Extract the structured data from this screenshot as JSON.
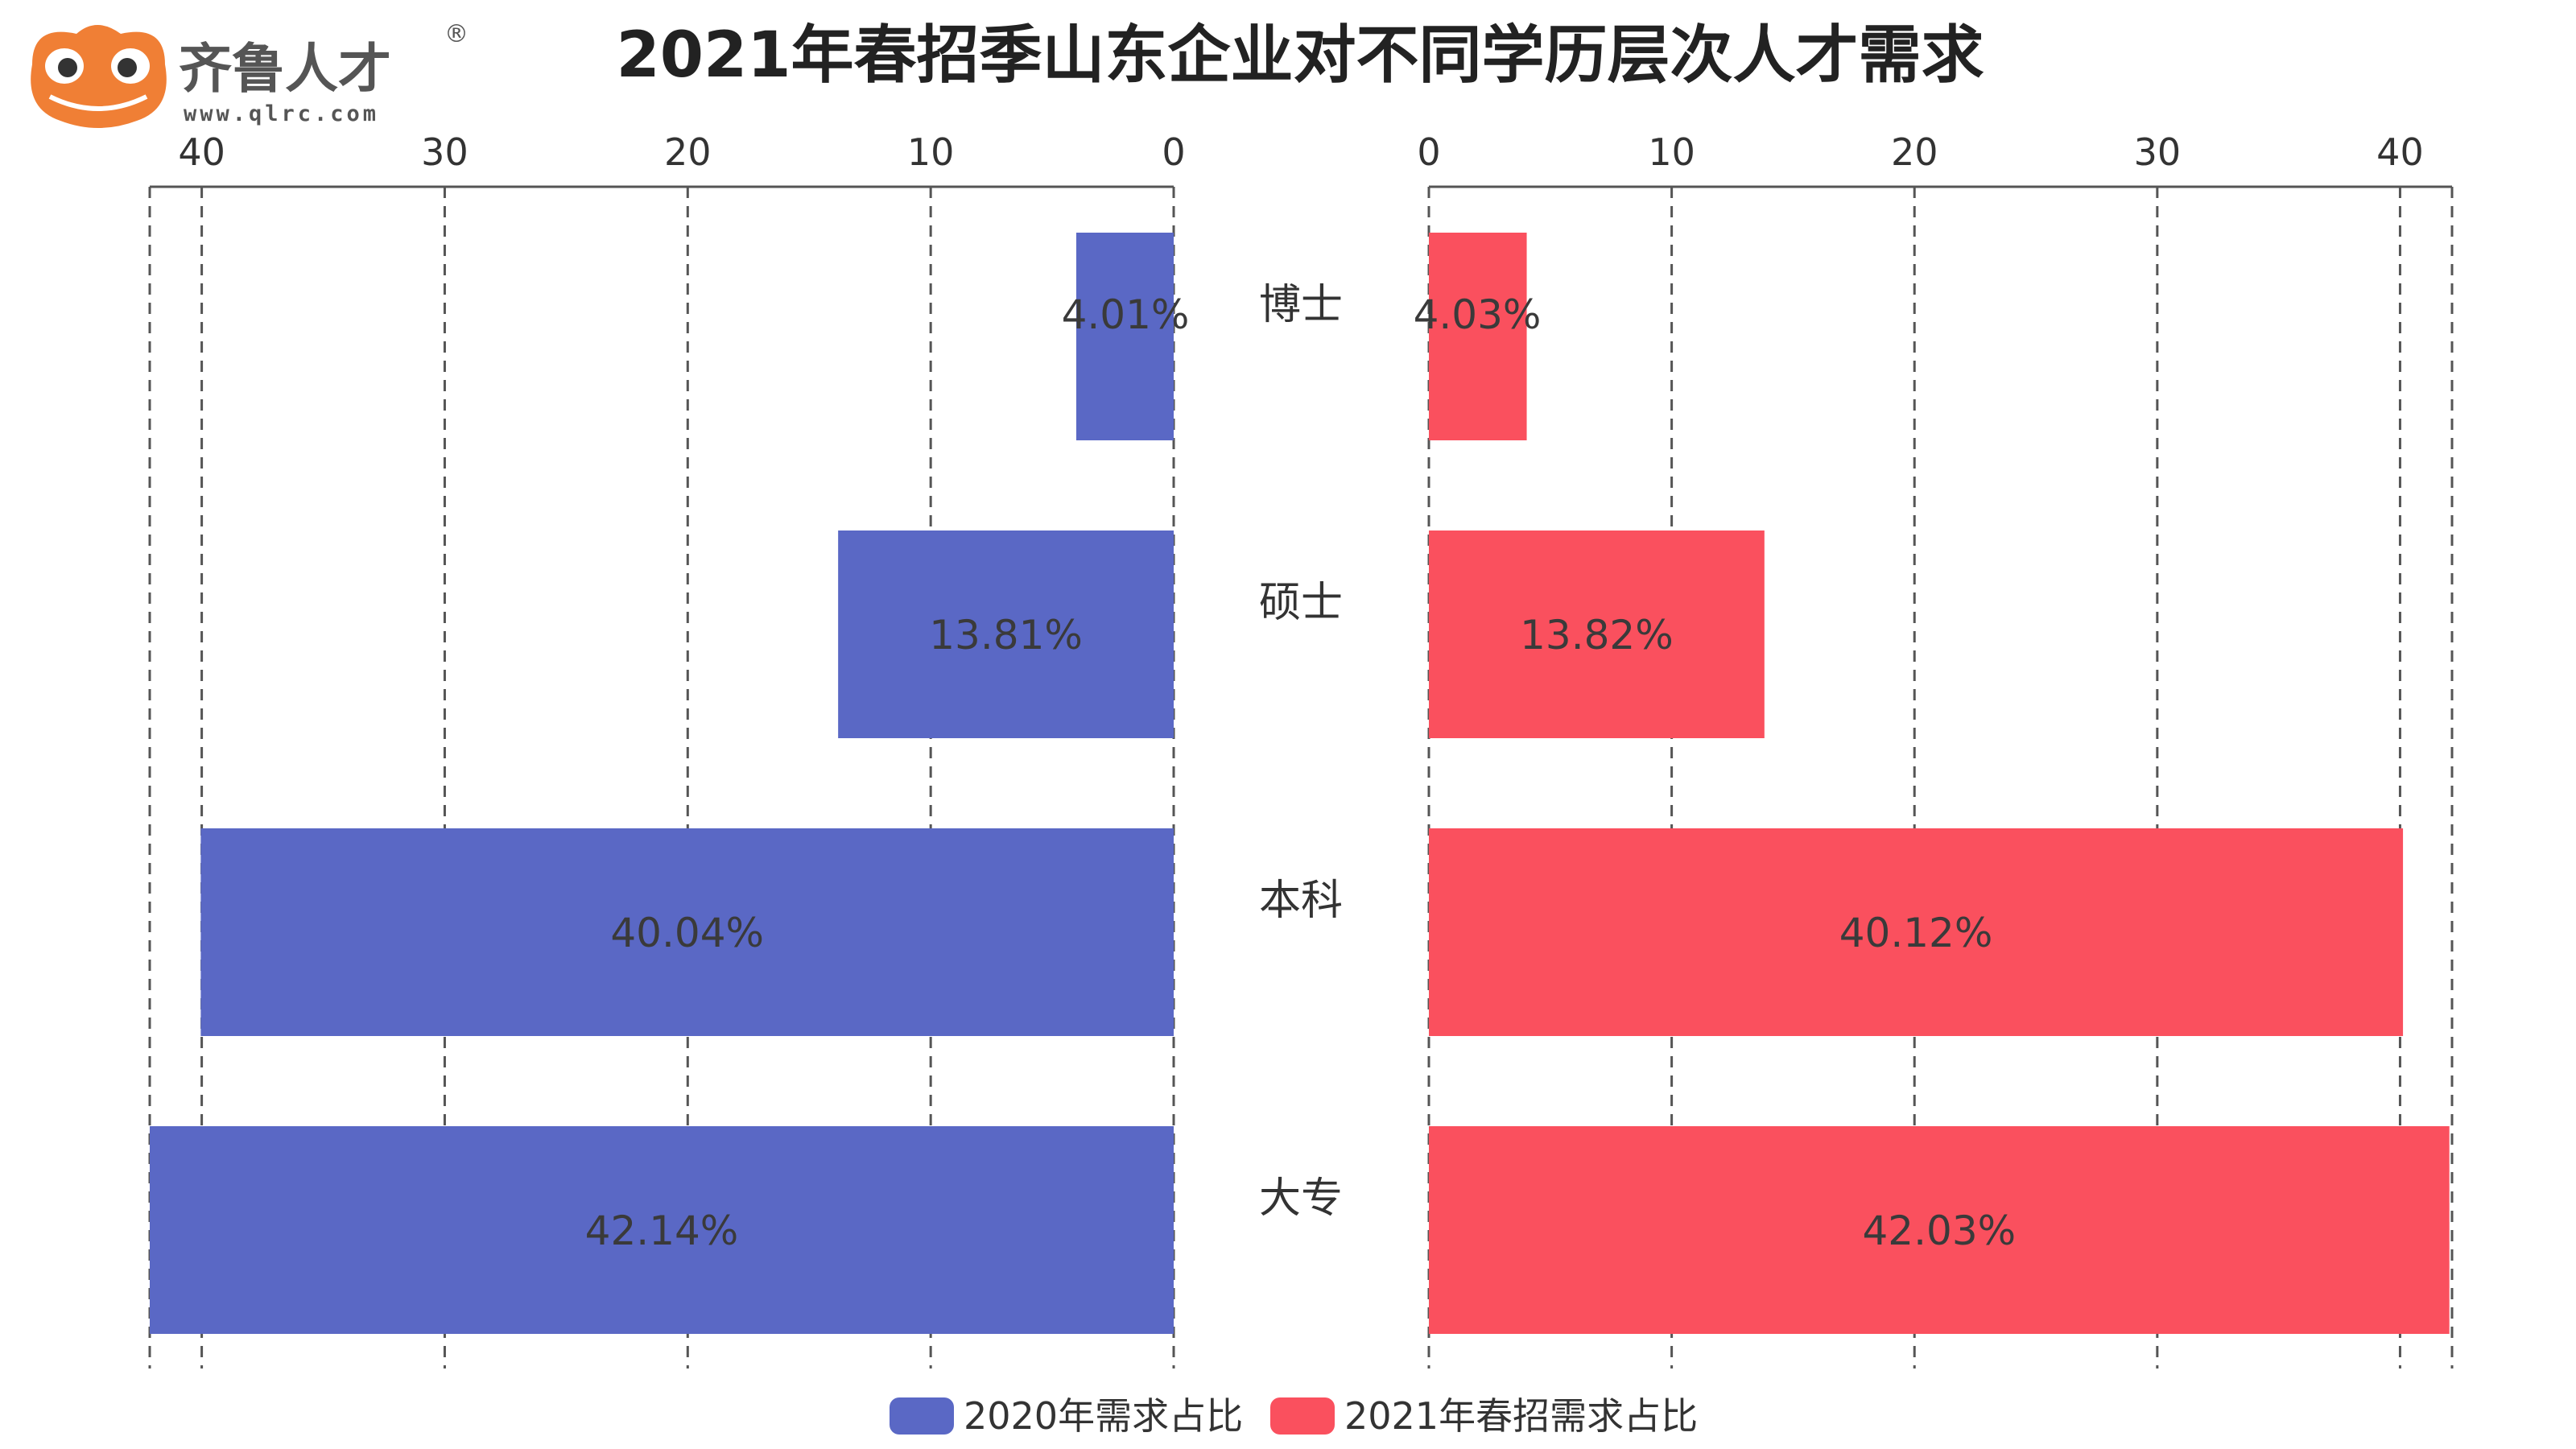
{
  "logo": {
    "name": "齐鲁人才",
    "url": "www.qlrc.com",
    "registered_mark": "®",
    "color": "#f07f35"
  },
  "chart_data": {
    "type": "bar",
    "title": "2021年春招季山东企业对不同学历层次人才需求",
    "categories": [
      "博士",
      "硕士",
      "本科",
      "大专"
    ],
    "series": [
      {
        "name": "2020年需求占比",
        "values": [
          4.01,
          13.81,
          40.04,
          42.14
        ],
        "labels": [
          "4.01%",
          "13.81%",
          "40.04%",
          "42.14%"
        ],
        "color": "#5a68c5",
        "direction": "left"
      },
      {
        "name": "2021年春招需求占比",
        "values": [
          4.03,
          13.82,
          40.12,
          42.03
        ],
        "labels": [
          "4.03%",
          "13.82%",
          "40.12%",
          "42.03%"
        ],
        "color": "#fa505e",
        "direction": "right"
      }
    ],
    "xlim": [
      0,
      42.14
    ],
    "ticks": [
      0,
      10,
      20,
      30,
      40
    ],
    "tick_labels": [
      "0",
      "10",
      "20",
      "30",
      "40"
    ],
    "grid": true,
    "legend_position": "bottom"
  }
}
